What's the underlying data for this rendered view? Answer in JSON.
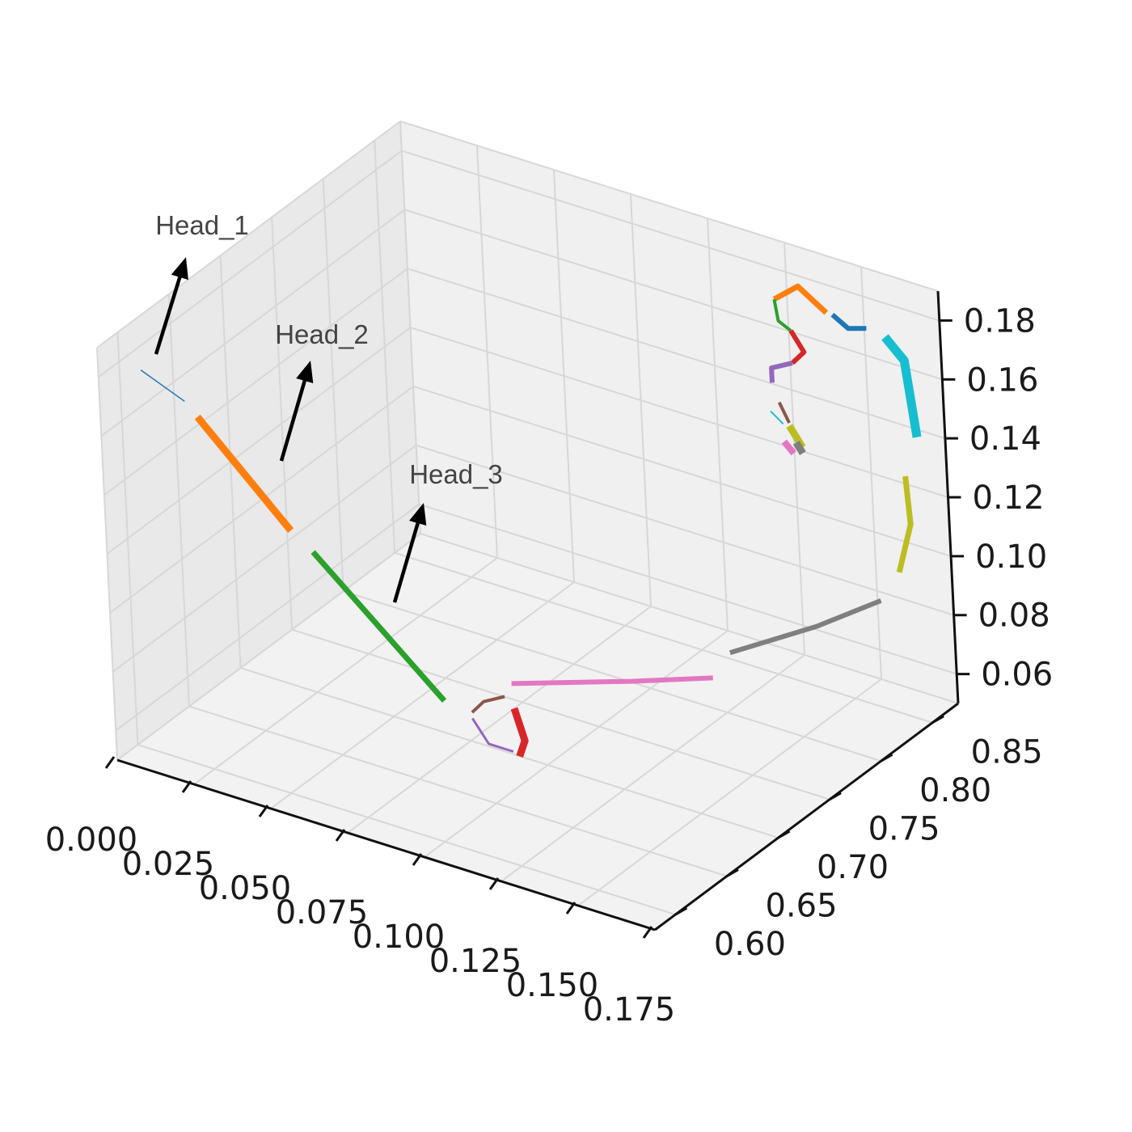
{
  "chart_data": {
    "type": "line",
    "projection": "3d",
    "title": "",
    "xlabel": "",
    "ylabel": "",
    "zlabel": "",
    "grid": true,
    "x_ticks": [
      "0.000",
      "0.025",
      "0.050",
      "0.075",
      "0.100",
      "0.125",
      "0.150",
      "0.175"
    ],
    "y_ticks": [
      "0.60",
      "0.65",
      "0.70",
      "0.75",
      "0.80",
      "0.85"
    ],
    "z_ticks": [
      "0.06",
      "0.08",
      "0.10",
      "0.12",
      "0.14",
      "0.16",
      "0.18"
    ],
    "xlim": [
      0.0,
      0.175
    ],
    "ylim": [
      0.58,
      0.875
    ],
    "zlim": [
      0.05,
      0.19
    ],
    "annotations": [
      {
        "text": "Head_1",
        "arrow_color": "#000000"
      },
      {
        "text": "Head_2",
        "arrow_color": "#000000"
      },
      {
        "text": "Head_3",
        "arrow_color": "#000000"
      }
    ],
    "series": [
      {
        "color": "#1f77b4",
        "width": 1.5,
        "points": [
          [
            0.0,
            0.62,
            0.172
          ],
          [
            0.014,
            0.62,
            0.166
          ]
        ]
      },
      {
        "color": "#ff7f0e",
        "width": 9,
        "points": [
          [
            0.018,
            0.62,
            0.162
          ],
          [
            0.047,
            0.62,
            0.133
          ]
        ]
      },
      {
        "color": "#2ca02c",
        "width": 7,
        "points": [
          [
            0.054,
            0.62,
            0.128
          ],
          [
            0.074,
            0.62,
            0.11
          ],
          [
            0.095,
            0.62,
            0.091
          ]
        ]
      },
      {
        "color": "#d62728",
        "width": 9,
        "points": [
          [
            0.118,
            0.62,
            0.096
          ],
          [
            0.121,
            0.62,
            0.086
          ],
          [
            0.119,
            0.62,
            0.08
          ]
        ]
      },
      {
        "color": "#9467bd",
        "width": 3,
        "points": [
          [
            0.104,
            0.62,
            0.088
          ],
          [
            0.109,
            0.62,
            0.081
          ],
          [
            0.117,
            0.62,
            0.081
          ]
        ]
      },
      {
        "color": "#8c564b",
        "width": 4,
        "points": [
          [
            0.104,
            0.62,
            0.09
          ],
          [
            0.108,
            0.62,
            0.095
          ],
          [
            0.115,
            0.62,
            0.099
          ]
        ]
      },
      {
        "color": "#e377c2",
        "width": 6,
        "points": [
          [
            0.121,
            0.61,
            0.108
          ],
          [
            0.143,
            0.66,
            0.103
          ],
          [
            0.156,
            0.7,
            0.098
          ]
        ]
      },
      {
        "color": "#7f7f7f",
        "width": 6,
        "points": [
          [
            0.155,
            0.72,
            0.101
          ],
          [
            0.163,
            0.78,
            0.097
          ],
          [
            0.167,
            0.83,
            0.094
          ]
        ]
      },
      {
        "color": "#bcbd22",
        "width": 7,
        "points": [
          [
            0.17,
            0.84,
            0.102
          ],
          [
            0.171,
            0.85,
            0.116
          ],
          [
            0.17,
            0.85,
            0.132
          ]
        ]
      },
      {
        "color": "#17becf",
        "width": 11,
        "points": [
          [
            0.162,
            0.86,
            0.174
          ],
          [
            0.168,
            0.86,
            0.168
          ],
          [
            0.171,
            0.86,
            0.143
          ]
        ]
      },
      {
        "color": "#1f77b4",
        "width": 6,
        "points": [
          [
            0.145,
            0.86,
            0.176
          ],
          [
            0.15,
            0.86,
            0.173
          ],
          [
            0.156,
            0.86,
            0.175
          ]
        ]
      },
      {
        "color": "#ff7f0e",
        "width": 7,
        "points": [
          [
            0.126,
            0.86,
            0.175
          ],
          [
            0.134,
            0.86,
            0.182
          ],
          [
            0.143,
            0.86,
            0.176
          ]
        ]
      },
      {
        "color": "#2ca02c",
        "width": 4,
        "points": [
          [
            0.126,
            0.86,
            0.175
          ],
          [
            0.127,
            0.86,
            0.168
          ],
          [
            0.131,
            0.86,
            0.166
          ]
        ]
      },
      {
        "color": "#d62728",
        "width": 6,
        "points": [
          [
            0.131,
            0.86,
            0.166
          ],
          [
            0.135,
            0.86,
            0.16
          ],
          [
            0.131,
            0.86,
            0.155
          ]
        ]
      },
      {
        "color": "#9467bd",
        "width": 6,
        "points": [
          [
            0.131,
            0.86,
            0.155
          ],
          [
            0.124,
            0.86,
            0.151
          ],
          [
            0.124,
            0.86,
            0.146
          ]
        ]
      },
      {
        "color": "#8c564b",
        "width": 4,
        "points": [
          [
            0.126,
            0.86,
            0.14
          ],
          [
            0.129,
            0.86,
            0.134
          ]
        ]
      },
      {
        "color": "#17becf",
        "width": 2,
        "points": [
          [
            0.123,
            0.86,
            0.136
          ],
          [
            0.127,
            0.86,
            0.133
          ]
        ]
      },
      {
        "color": "#bcbd22",
        "width": 9,
        "points": [
          [
            0.129,
            0.86,
            0.133
          ],
          [
            0.133,
            0.86,
            0.127
          ]
        ]
      },
      {
        "color": "#e377c2",
        "width": 8,
        "points": [
          [
            0.127,
            0.86,
            0.127
          ],
          [
            0.13,
            0.86,
            0.124
          ]
        ]
      },
      {
        "color": "#7f7f7f",
        "width": 9,
        "points": [
          [
            0.131,
            0.86,
            0.128
          ],
          [
            0.133,
            0.86,
            0.125
          ]
        ]
      }
    ]
  }
}
